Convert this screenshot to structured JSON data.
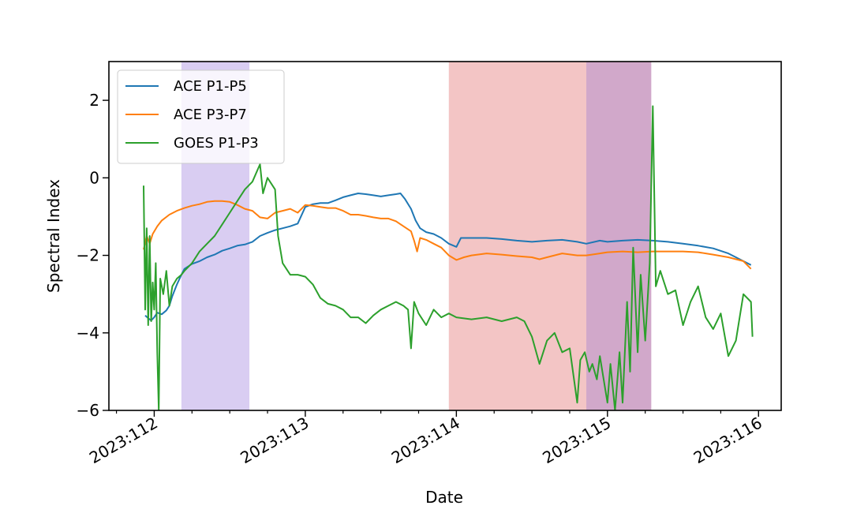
{
  "chart_data": {
    "type": "line",
    "title": "",
    "xlabel": "Date",
    "ylabel": "Spectral Index",
    "xlim": [
      111.7,
      116.15
    ],
    "ylim": [
      -6,
      3
    ],
    "x_ticks": [
      {
        "value": 112,
        "label": "2023:112"
      },
      {
        "value": 113,
        "label": "2023:113"
      },
      {
        "value": 114,
        "label": "2023:114"
      },
      {
        "value": 115,
        "label": "2023:115"
      },
      {
        "value": 116,
        "label": "2023:116"
      }
    ],
    "x_minor_tick_step": 0.25,
    "y_ticks": [
      {
        "value": 2,
        "label": "2"
      },
      {
        "value": 0,
        "label": "0"
      },
      {
        "value": -2,
        "label": "−2"
      },
      {
        "value": -4,
        "label": "−4"
      },
      {
        "value": -6,
        "label": "−6"
      }
    ],
    "grid": false,
    "legend_position": "upper-left",
    "shaded_regions": [
      {
        "x_start": 112.18,
        "x_end": 112.63,
        "color": "#9370db",
        "opacity": 0.35
      },
      {
        "x_start": 113.95,
        "x_end": 114.86,
        "color": "#e06666",
        "opacity": 0.38
      },
      {
        "x_start": 114.86,
        "x_end": 115.29,
        "color": "#9a3d8a",
        "opacity": 0.45
      }
    ],
    "series": [
      {
        "name": "ACE P1-P5",
        "color": "#1f77b4",
        "points": [
          [
            111.94,
            -3.55
          ],
          [
            111.96,
            -3.62
          ],
          [
            111.98,
            -3.68
          ],
          [
            112.0,
            -3.6
          ],
          [
            112.02,
            -3.48
          ],
          [
            112.05,
            -3.52
          ],
          [
            112.08,
            -3.42
          ],
          [
            112.1,
            -3.3
          ],
          [
            112.12,
            -3.05
          ],
          [
            112.15,
            -2.75
          ],
          [
            112.18,
            -2.5
          ],
          [
            112.2,
            -2.35
          ],
          [
            112.25,
            -2.22
          ],
          [
            112.3,
            -2.15
          ],
          [
            112.35,
            -2.05
          ],
          [
            112.4,
            -1.98
          ],
          [
            112.45,
            -1.88
          ],
          [
            112.5,
            -1.82
          ],
          [
            112.55,
            -1.75
          ],
          [
            112.6,
            -1.72
          ],
          [
            112.65,
            -1.65
          ],
          [
            112.7,
            -1.5
          ],
          [
            112.75,
            -1.42
          ],
          [
            112.8,
            -1.35
          ],
          [
            112.85,
            -1.3
          ],
          [
            112.9,
            -1.25
          ],
          [
            112.95,
            -1.18
          ],
          [
            113.0,
            -0.75
          ],
          [
            113.05,
            -0.68
          ],
          [
            113.1,
            -0.65
          ],
          [
            113.15,
            -0.65
          ],
          [
            113.2,
            -0.58
          ],
          [
            113.25,
            -0.5
          ],
          [
            113.3,
            -0.45
          ],
          [
            113.35,
            -0.4
          ],
          [
            113.4,
            -0.42
          ],
          [
            113.45,
            -0.45
          ],
          [
            113.5,
            -0.48
          ],
          [
            113.55,
            -0.45
          ],
          [
            113.6,
            -0.42
          ],
          [
            113.63,
            -0.4
          ],
          [
            113.66,
            -0.55
          ],
          [
            113.7,
            -0.8
          ],
          [
            113.73,
            -1.1
          ],
          [
            113.76,
            -1.3
          ],
          [
            113.8,
            -1.4
          ],
          [
            113.85,
            -1.45
          ],
          [
            113.9,
            -1.55
          ],
          [
            113.95,
            -1.7
          ],
          [
            114.0,
            -1.78
          ],
          [
            114.03,
            -1.55
          ],
          [
            114.1,
            -1.55
          ],
          [
            114.2,
            -1.55
          ],
          [
            114.3,
            -1.58
          ],
          [
            114.4,
            -1.62
          ],
          [
            114.5,
            -1.65
          ],
          [
            114.6,
            -1.62
          ],
          [
            114.7,
            -1.6
          ],
          [
            114.8,
            -1.65
          ],
          [
            114.86,
            -1.7
          ],
          [
            114.95,
            -1.62
          ],
          [
            115.0,
            -1.65
          ],
          [
            115.1,
            -1.62
          ],
          [
            115.2,
            -1.6
          ],
          [
            115.3,
            -1.62
          ],
          [
            115.4,
            -1.65
          ],
          [
            115.5,
            -1.7
          ],
          [
            115.6,
            -1.75
          ],
          [
            115.7,
            -1.82
          ],
          [
            115.8,
            -1.95
          ],
          [
            115.85,
            -2.05
          ],
          [
            115.9,
            -2.15
          ],
          [
            115.95,
            -2.25
          ]
        ]
      },
      {
        "name": "ACE P3-P7",
        "color": "#ff7f0e",
        "points": [
          [
            111.93,
            -1.85
          ],
          [
            111.95,
            -1.5
          ],
          [
            111.97,
            -1.7
          ],
          [
            111.99,
            -1.45
          ],
          [
            112.02,
            -1.25
          ],
          [
            112.05,
            -1.1
          ],
          [
            112.1,
            -0.95
          ],
          [
            112.15,
            -0.85
          ],
          [
            112.2,
            -0.78
          ],
          [
            112.25,
            -0.72
          ],
          [
            112.3,
            -0.68
          ],
          [
            112.35,
            -0.62
          ],
          [
            112.4,
            -0.6
          ],
          [
            112.45,
            -0.6
          ],
          [
            112.5,
            -0.62
          ],
          [
            112.55,
            -0.7
          ],
          [
            112.6,
            -0.8
          ],
          [
            112.65,
            -0.85
          ],
          [
            112.7,
            -1.02
          ],
          [
            112.75,
            -1.05
          ],
          [
            112.8,
            -0.9
          ],
          [
            112.85,
            -0.85
          ],
          [
            112.9,
            -0.8
          ],
          [
            112.95,
            -0.9
          ],
          [
            113.0,
            -0.7
          ],
          [
            113.05,
            -0.72
          ],
          [
            113.1,
            -0.75
          ],
          [
            113.15,
            -0.78
          ],
          [
            113.2,
            -0.78
          ],
          [
            113.25,
            -0.85
          ],
          [
            113.3,
            -0.95
          ],
          [
            113.35,
            -0.95
          ],
          [
            113.4,
            -0.98
          ],
          [
            113.45,
            -1.02
          ],
          [
            113.5,
            -1.05
          ],
          [
            113.55,
            -1.05
          ],
          [
            113.6,
            -1.12
          ],
          [
            113.65,
            -1.25
          ],
          [
            113.7,
            -1.38
          ],
          [
            113.72,
            -1.62
          ],
          [
            113.74,
            -1.9
          ],
          [
            113.76,
            -1.55
          ],
          [
            113.8,
            -1.6
          ],
          [
            113.85,
            -1.7
          ],
          [
            113.9,
            -1.8
          ],
          [
            113.95,
            -2.0
          ],
          [
            114.0,
            -2.12
          ],
          [
            114.05,
            -2.05
          ],
          [
            114.1,
            -2.0
          ],
          [
            114.2,
            -1.95
          ],
          [
            114.3,
            -1.98
          ],
          [
            114.4,
            -2.02
          ],
          [
            114.5,
            -2.05
          ],
          [
            114.55,
            -2.1
          ],
          [
            114.6,
            -2.05
          ],
          [
            114.7,
            -1.95
          ],
          [
            114.8,
            -2.0
          ],
          [
            114.86,
            -2.0
          ],
          [
            114.95,
            -1.95
          ],
          [
            115.0,
            -1.92
          ],
          [
            115.1,
            -1.9
          ],
          [
            115.2,
            -1.92
          ],
          [
            115.3,
            -1.9
          ],
          [
            115.4,
            -1.9
          ],
          [
            115.5,
            -1.9
          ],
          [
            115.6,
            -1.92
          ],
          [
            115.7,
            -1.98
          ],
          [
            115.8,
            -2.05
          ],
          [
            115.9,
            -2.15
          ],
          [
            115.95,
            -2.35
          ]
        ]
      },
      {
        "name": "GOES P1-P3",
        "color": "#2ca02c",
        "points": [
          [
            111.93,
            -0.2
          ],
          [
            111.94,
            -3.4
          ],
          [
            111.95,
            -1.3
          ],
          [
            111.96,
            -3.8
          ],
          [
            111.97,
            -1.5
          ],
          [
            111.98,
            -3.7
          ],
          [
            111.99,
            -2.7
          ],
          [
            112.0,
            -3.4
          ],
          [
            112.01,
            -2.2
          ],
          [
            112.02,
            -4.5
          ],
          [
            112.03,
            -6.0
          ],
          [
            112.04,
            -2.6
          ],
          [
            112.06,
            -3.0
          ],
          [
            112.08,
            -2.4
          ],
          [
            112.1,
            -3.3
          ],
          [
            112.12,
            -2.8
          ],
          [
            112.15,
            -2.6
          ],
          [
            112.18,
            -2.5
          ],
          [
            112.2,
            -2.4
          ],
          [
            112.25,
            -2.2
          ],
          [
            112.3,
            -1.9
          ],
          [
            112.35,
            -1.7
          ],
          [
            112.4,
            -1.5
          ],
          [
            112.45,
            -1.2
          ],
          [
            112.5,
            -0.9
          ],
          [
            112.55,
            -0.6
          ],
          [
            112.6,
            -0.3
          ],
          [
            112.65,
            -0.1
          ],
          [
            112.7,
            0.35
          ],
          [
            112.72,
            -0.4
          ],
          [
            112.75,
            0.0
          ],
          [
            112.8,
            -0.3
          ],
          [
            112.82,
            -1.5
          ],
          [
            112.85,
            -2.2
          ],
          [
            112.9,
            -2.5
          ],
          [
            112.95,
            -2.5
          ],
          [
            113.0,
            -2.55
          ],
          [
            113.05,
            -2.75
          ],
          [
            113.1,
            -3.1
          ],
          [
            113.15,
            -3.25
          ],
          [
            113.2,
            -3.3
          ],
          [
            113.25,
            -3.4
          ],
          [
            113.3,
            -3.6
          ],
          [
            113.35,
            -3.6
          ],
          [
            113.4,
            -3.75
          ],
          [
            113.45,
            -3.55
          ],
          [
            113.5,
            -3.4
          ],
          [
            113.55,
            -3.3
          ],
          [
            113.6,
            -3.2
          ],
          [
            113.65,
            -3.3
          ],
          [
            113.68,
            -3.4
          ],
          [
            113.7,
            -4.4
          ],
          [
            113.72,
            -3.2
          ],
          [
            113.75,
            -3.5
          ],
          [
            113.8,
            -3.8
          ],
          [
            113.85,
            -3.4
          ],
          [
            113.9,
            -3.6
          ],
          [
            113.95,
            -3.5
          ],
          [
            114.0,
            -3.6
          ],
          [
            114.1,
            -3.65
          ],
          [
            114.2,
            -3.6
          ],
          [
            114.3,
            -3.7
          ],
          [
            114.4,
            -3.6
          ],
          [
            114.45,
            -3.7
          ],
          [
            114.5,
            -4.1
          ],
          [
            114.55,
            -4.8
          ],
          [
            114.6,
            -4.2
          ],
          [
            114.65,
            -4.0
          ],
          [
            114.7,
            -4.5
          ],
          [
            114.75,
            -4.4
          ],
          [
            114.8,
            -5.8
          ],
          [
            114.82,
            -4.7
          ],
          [
            114.85,
            -4.5
          ],
          [
            114.88,
            -5.0
          ],
          [
            114.9,
            -4.8
          ],
          [
            114.93,
            -5.2
          ],
          [
            114.95,
            -4.6
          ],
          [
            115.0,
            -5.8
          ],
          [
            115.02,
            -4.8
          ],
          [
            115.05,
            -6.0
          ],
          [
            115.08,
            -4.5
          ],
          [
            115.1,
            -5.8
          ],
          [
            115.13,
            -3.2
          ],
          [
            115.15,
            -5.0
          ],
          [
            115.17,
            -1.8
          ],
          [
            115.2,
            -4.5
          ],
          [
            115.22,
            -2.5
          ],
          [
            115.25,
            -4.2
          ],
          [
            115.28,
            -2.2
          ],
          [
            115.3,
            1.85
          ],
          [
            115.32,
            -2.8
          ],
          [
            115.35,
            -2.4
          ],
          [
            115.4,
            -3.0
          ],
          [
            115.45,
            -2.9
          ],
          [
            115.5,
            -3.8
          ],
          [
            115.55,
            -3.2
          ],
          [
            115.6,
            -2.8
          ],
          [
            115.65,
            -3.6
          ],
          [
            115.7,
            -3.9
          ],
          [
            115.75,
            -3.5
          ],
          [
            115.8,
            -4.6
          ],
          [
            115.85,
            -4.2
          ],
          [
            115.9,
            -3.0
          ],
          [
            115.95,
            -3.2
          ],
          [
            115.96,
            -4.1
          ]
        ]
      }
    ]
  }
}
